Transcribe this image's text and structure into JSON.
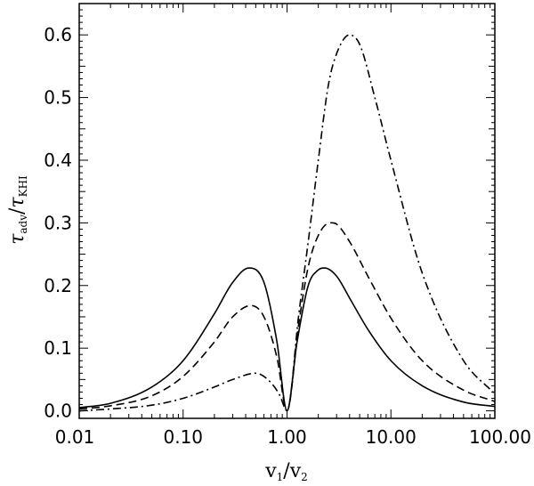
{
  "chart_data": {
    "type": "line",
    "title": "",
    "xlabel": {
      "main": "v",
      "sub1": "1",
      "slash": "/",
      "main2": "v",
      "sub2": "2"
    },
    "ylabel": {
      "main": "τ",
      "sub1": "adv",
      "slash": "/",
      "main2": "τ",
      "sub2": "KHI"
    },
    "xscale": "log",
    "xlim": [
      0.01,
      100
    ],
    "ylim": [
      -0.012,
      0.65
    ],
    "xticks": [
      0.01,
      0.1,
      1,
      10,
      100
    ],
    "xtick_labels": [
      "0.01",
      "0.10",
      "1.00",
      "10.00",
      "100.00"
    ],
    "yticks": [
      0.0,
      0.1,
      0.2,
      0.3,
      0.4,
      0.5,
      0.6
    ],
    "ytick_labels": [
      "0.0",
      "0.1",
      "0.2",
      "0.3",
      "0.4",
      "0.5",
      "0.6"
    ],
    "grid": false,
    "legend": "none",
    "series": [
      {
        "style": "solid",
        "x": [
          0.01,
          0.02,
          0.05,
          0.1,
          0.2,
          0.3,
          0.43,
          0.6,
          0.8,
          1.0,
          1.25,
          1.6,
          2.0,
          2.3,
          3.0,
          4.0,
          6.0,
          10.0,
          20.0,
          50.0,
          100.0
        ],
        "y": [
          0.005,
          0.012,
          0.038,
          0.08,
          0.155,
          0.205,
          0.228,
          0.205,
          0.11,
          0.0,
          0.11,
          0.2,
          0.225,
          0.228,
          0.215,
          0.18,
          0.13,
          0.08,
          0.04,
          0.014,
          0.007
        ]
      },
      {
        "style": "dashed",
        "x": [
          0.01,
          0.02,
          0.05,
          0.1,
          0.2,
          0.3,
          0.45,
          0.6,
          0.8,
          1.0,
          1.3,
          1.6,
          2.0,
          2.6,
          3.0,
          4.0,
          6.0,
          10.0,
          20.0,
          50.0,
          100.0
        ],
        "y": [
          0.003,
          0.008,
          0.024,
          0.055,
          0.11,
          0.15,
          0.168,
          0.15,
          0.085,
          0.0,
          0.14,
          0.23,
          0.28,
          0.3,
          0.298,
          0.27,
          0.215,
          0.148,
          0.08,
          0.033,
          0.015
        ]
      },
      {
        "style": "dashdot",
        "x": [
          0.01,
          0.02,
          0.05,
          0.1,
          0.2,
          0.3,
          0.5,
          0.7,
          0.85,
          1.0,
          1.3,
          1.6,
          2.0,
          2.5,
          3.0,
          4.0,
          5.0,
          7.0,
          10.0,
          20.0,
          50.0,
          100.0
        ],
        "y": [
          0.0,
          0.003,
          0.009,
          0.02,
          0.038,
          0.05,
          0.06,
          0.045,
          0.025,
          0.0,
          0.155,
          0.27,
          0.4,
          0.52,
          0.57,
          0.6,
          0.585,
          0.5,
          0.4,
          0.22,
          0.08,
          0.027
        ]
      }
    ]
  }
}
